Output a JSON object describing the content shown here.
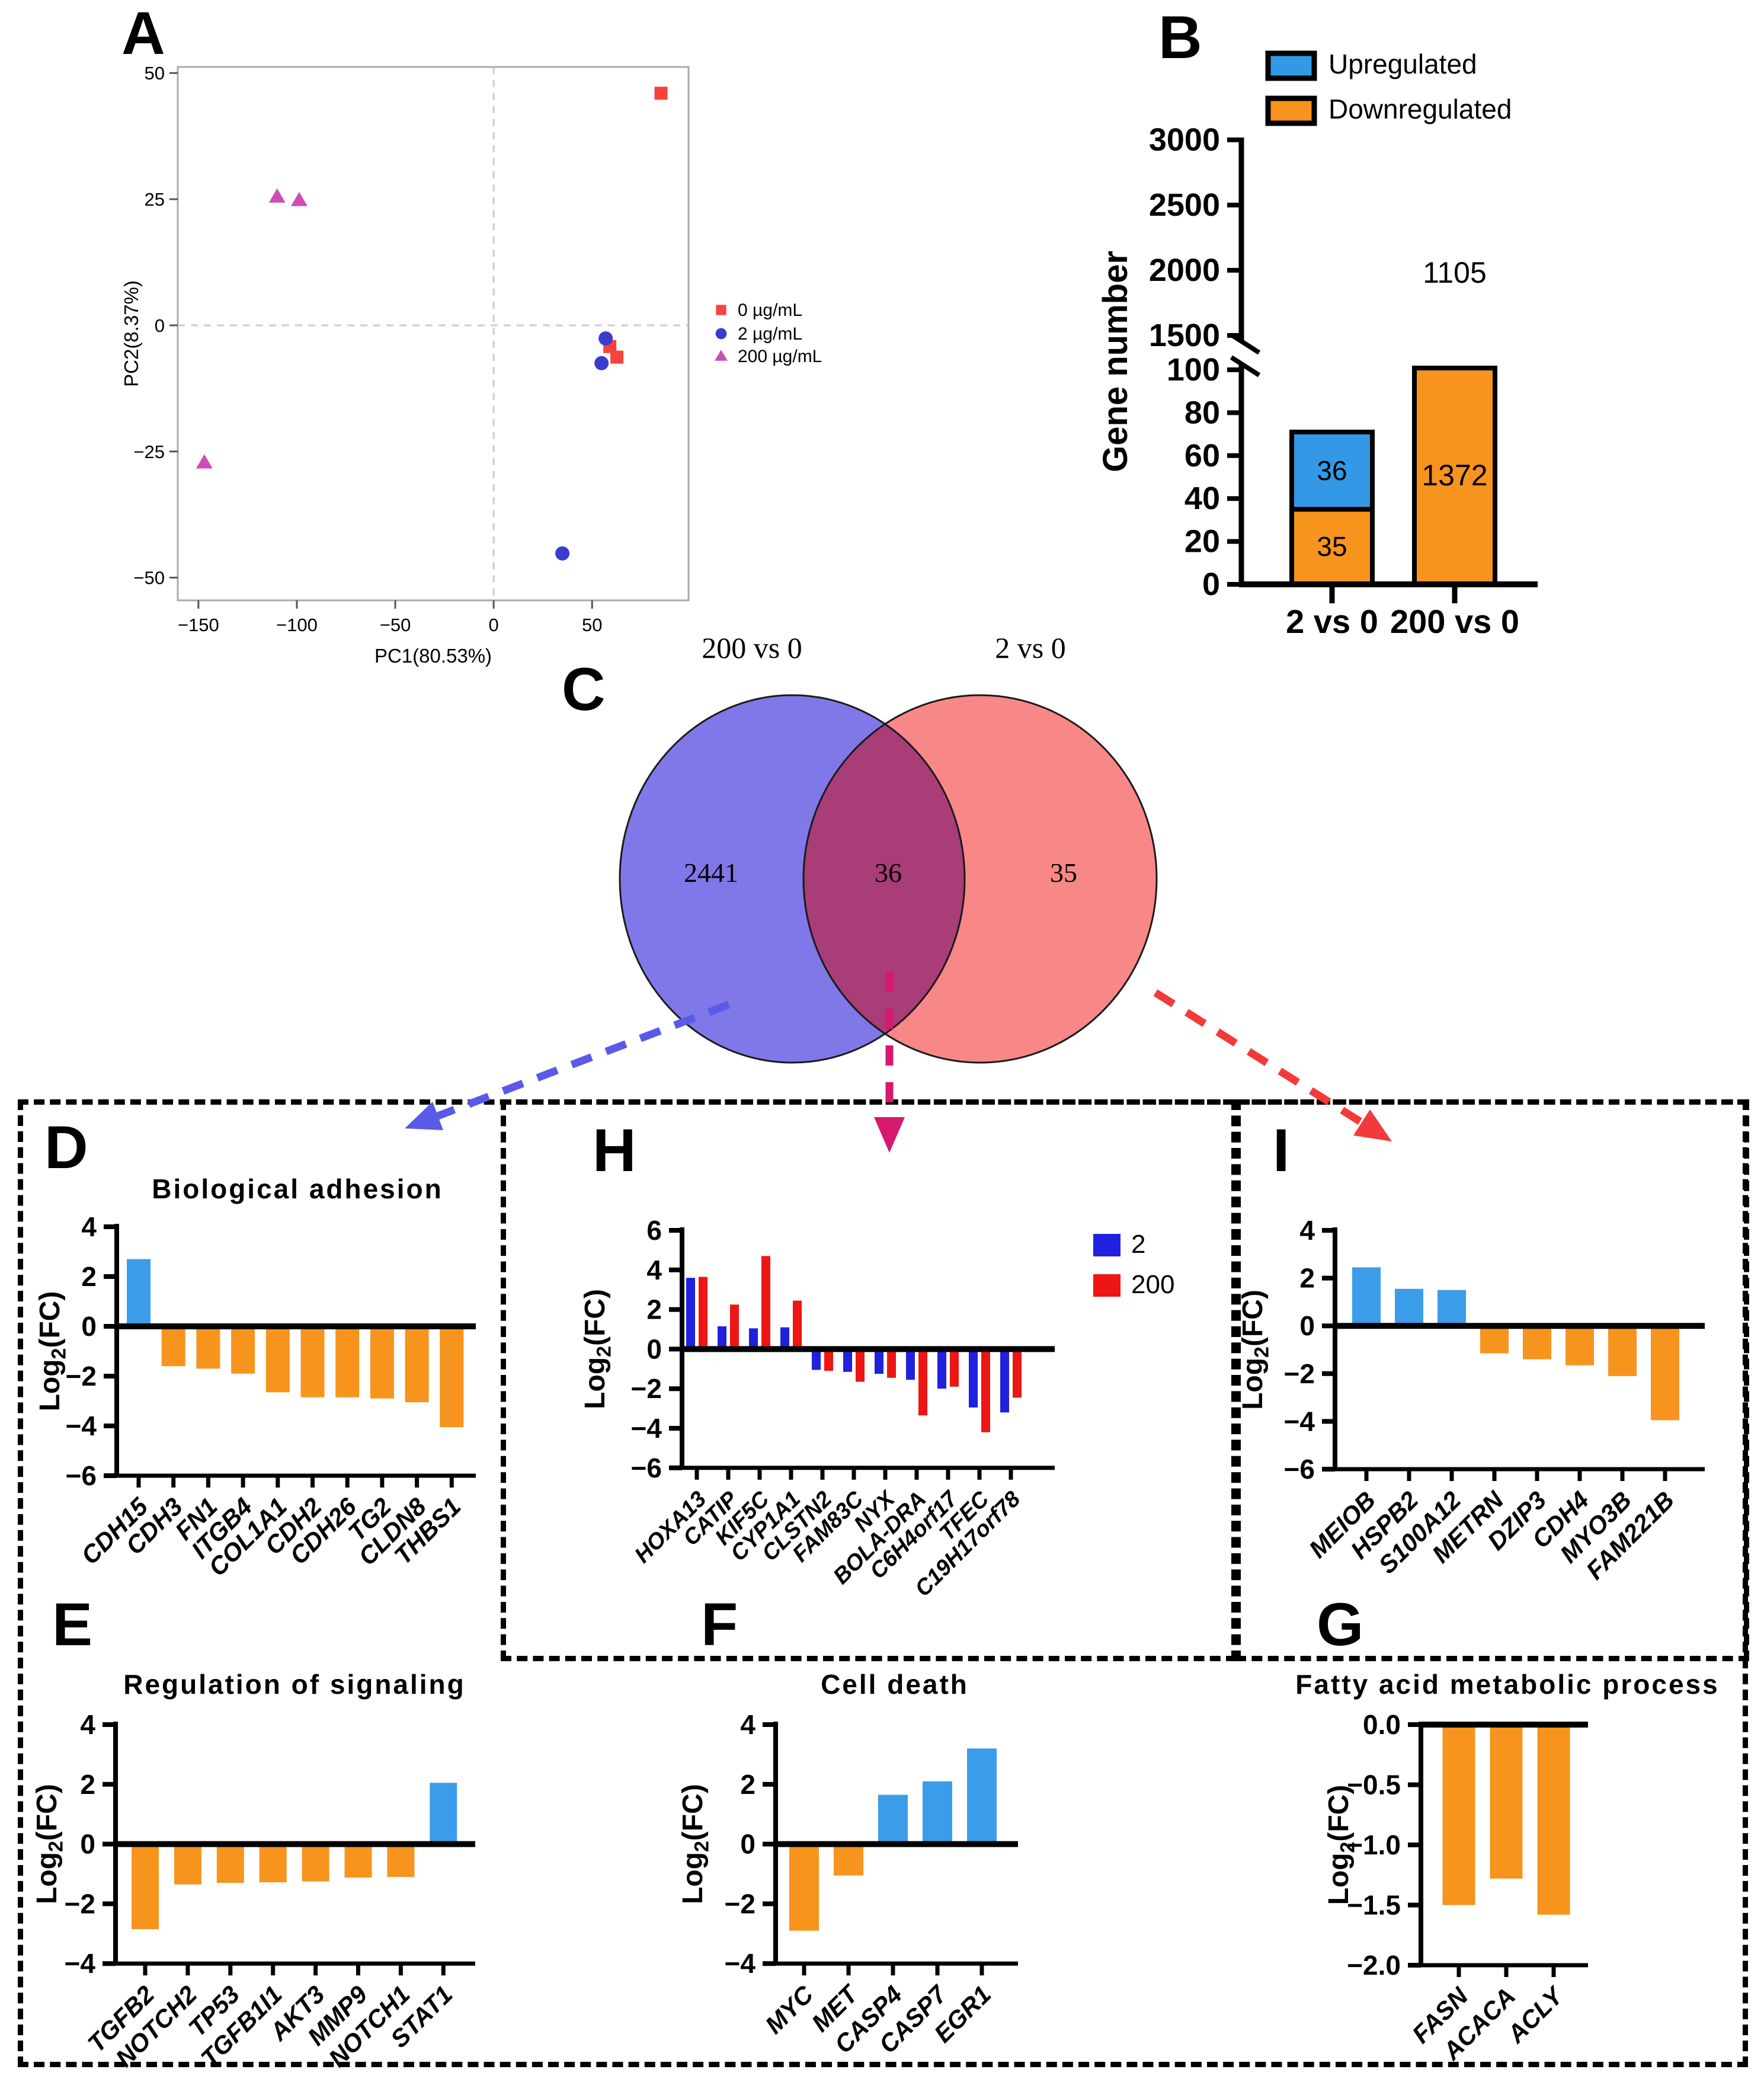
{
  "log2fc": {
    "pre": "Log",
    "sub": "2",
    "post": "(FC)"
  },
  "arrows": [
    {
      "name": "venn-left-to-panel-d",
      "color": "#5A5AE8"
    },
    {
      "name": "venn-overlap-to-panel-h",
      "color": "#D6186E"
    },
    {
      "name": "venn-right-to-panel-i",
      "color": "#F23A3A"
    }
  ],
  "chart_data": [
    {
      "id": "A",
      "panel_letter": "A",
      "type": "scatter",
      "xlabel": "PC1(80.53%)",
      "ylabel": "PC2(8.37%)",
      "xlim": [
        -160.5,
        99
      ],
      "ylim": [
        -54.5,
        51.2
      ],
      "xticks": [
        -150,
        -100,
        -50,
        0,
        50
      ],
      "yticks": [
        50,
        25,
        0,
        -25,
        -50
      ],
      "grid": "dashed-zero-lines",
      "legend_position": "right",
      "series": [
        {
          "name": "0 µg/mL",
          "marker": "square",
          "color": "#F8423C",
          "points": [
            [
              85,
              46
            ],
            [
              59,
              -4.2
            ],
            [
              62.6,
              -6.3
            ]
          ]
        },
        {
          "name": "2 µg/mL",
          "marker": "circle",
          "color": "#3B3BD0",
          "points": [
            [
              56.9,
              -2.6
            ],
            [
              54.8,
              -7.5
            ],
            [
              34.9,
              -45.2
            ]
          ]
        },
        {
          "name": "200 µg/mL",
          "marker": "triangle",
          "color": "#CE4EB8",
          "points": [
            [
              -110,
              25.5
            ],
            [
              -98.8,
              24.8
            ],
            [
              -147,
              -27.2
            ]
          ]
        }
      ]
    },
    {
      "id": "B",
      "panel_letter": "B",
      "type": "bar",
      "subtype": "stacked-broken-axis",
      "ylabel": "Gene number",
      "categories": [
        "2 vs 0",
        "200 vs 0"
      ],
      "series": [
        {
          "name": "Upregulated",
          "color": "#3399E6",
          "values": [
            36,
            1105
          ]
        },
        {
          "name": "Downregulated",
          "color": "#F7941D",
          "values": [
            35,
            1372
          ]
        }
      ],
      "upper_axis_ticks": [
        3000,
        2500,
        2000,
        1500
      ],
      "lower_axis_ticks": [
        100,
        80,
        60,
        40,
        20,
        0
      ],
      "legend": [
        {
          "label": "Upregulated",
          "color": "#3399E6"
        },
        {
          "label": "Downregulated",
          "color": "#F7941D"
        }
      ]
    },
    {
      "id": "C",
      "panel_letter": "C",
      "type": "venn",
      "sets": [
        {
          "label": "200 vs 0",
          "count": "2441",
          "color": "#8078E8"
        },
        {
          "label": "2 vs 0",
          "count": "35",
          "color": "#F88787"
        }
      ],
      "overlap": {
        "count": "36",
        "color": "#A83D77"
      }
    },
    {
      "id": "D",
      "panel_letter": "D",
      "type": "bar",
      "title": "Biological adhesion",
      "categories": [
        "CDH15",
        "CDH3",
        "FN1",
        "ITGB4",
        "COL1A1",
        "CDH2",
        "CDH26",
        "TG2",
        "CLDN8",
        "THBS1"
      ],
      "values": [
        2.7,
        -1.6,
        -1.7,
        -1.9,
        -2.65,
        -2.85,
        -2.85,
        -2.9,
        -3.05,
        -4.05
      ],
      "yticks": [
        4,
        2,
        0,
        -2,
        -4,
        -6
      ],
      "ylabel": "Log2(FC)",
      "pos_color": "#3B9CEA",
      "neg_color": "#F7941D"
    },
    {
      "id": "E",
      "panel_letter": "E",
      "type": "bar",
      "title": "Regulation of signaling",
      "categories": [
        "TGFB2",
        "NOTCH2",
        "TP53",
        "TGFB1I1",
        "AKT3",
        "MMP9",
        "NOTCH1",
        "STAT1"
      ],
      "values": [
        -2.85,
        -1.35,
        -1.3,
        -1.28,
        -1.25,
        -1.12,
        -1.1,
        2.05
      ],
      "yticks": [
        4,
        2,
        0,
        -2,
        -4
      ],
      "ylabel": "Log2(FC)",
      "pos_color": "#3B9CEA",
      "neg_color": "#F7941D"
    },
    {
      "id": "F",
      "panel_letter": "F",
      "type": "bar",
      "title": "Cell death",
      "categories": [
        "MYC",
        "MET",
        "CASP4",
        "CASP7",
        "EGR1"
      ],
      "values": [
        -2.9,
        -1.05,
        1.65,
        2.1,
        3.2
      ],
      "yticks": [
        4,
        2,
        0,
        -2,
        -4
      ],
      "ylabel": "Log2(FC)",
      "pos_color": "#3B9CEA",
      "neg_color": "#F7941D"
    },
    {
      "id": "G",
      "panel_letter": "G",
      "type": "bar",
      "title": "Fatty acid metabolic process",
      "categories": [
        "FASN",
        "ACACA",
        "ACLY"
      ],
      "values": [
        -1.5,
        -1.28,
        -1.58
      ],
      "yticks": [
        0,
        -0.5,
        -1,
        -1.5,
        -2
      ],
      "tick_decimals": 1,
      "ylabel": "Log2(FC)",
      "pos_color": "#3B9CEA",
      "neg_color": "#F7941D"
    },
    {
      "id": "H",
      "panel_letter": "H",
      "type": "bar",
      "subtype": "grouped",
      "categories": [
        "HOXA13",
        "CATIP",
        "KIF5C",
        "CYP1A1",
        "CLSTN2",
        "FAM83C",
        "NYX",
        "BOLA-DRA",
        "C6H4orf17",
        "TFEC",
        "C19H17orf78"
      ],
      "series": [
        {
          "name": "2",
          "color": "#2020DF",
          "values": [
            3.6,
            1.15,
            1.05,
            1.1,
            -1.05,
            -1.15,
            -1.25,
            -1.55,
            -2.0,
            -2.95,
            -3.2
          ]
        },
        {
          "name": "200",
          "color": "#EE1515",
          "values": [
            3.65,
            2.25,
            4.7,
            2.45,
            -1.1,
            -1.65,
            -1.45,
            -3.35,
            -1.9,
            -4.2,
            -2.45
          ]
        }
      ],
      "yticks": [
        6,
        4,
        2,
        0,
        -2,
        -4,
        -6
      ],
      "ylabel": "Log2(FC)",
      "legend": [
        {
          "label": "2",
          "color": "#2020DF"
        },
        {
          "label": "200",
          "color": "#EE1515"
        }
      ]
    },
    {
      "id": "I",
      "panel_letter": "I",
      "type": "bar",
      "categories": [
        "MEIOB",
        "HSPB2",
        "S100A12",
        "METRN",
        "DZIP3",
        "CDH4",
        "MYO3B",
        "FAM221B"
      ],
      "values": [
        2.45,
        1.55,
        1.5,
        -1.15,
        -1.4,
        -1.65,
        -2.1,
        -3.95
      ],
      "yticks": [
        4,
        2,
        0,
        -2,
        -4,
        -6
      ],
      "ylabel": "Log2(FC)",
      "pos_color": "#3B9CEA",
      "neg_color": "#F7941D"
    }
  ]
}
